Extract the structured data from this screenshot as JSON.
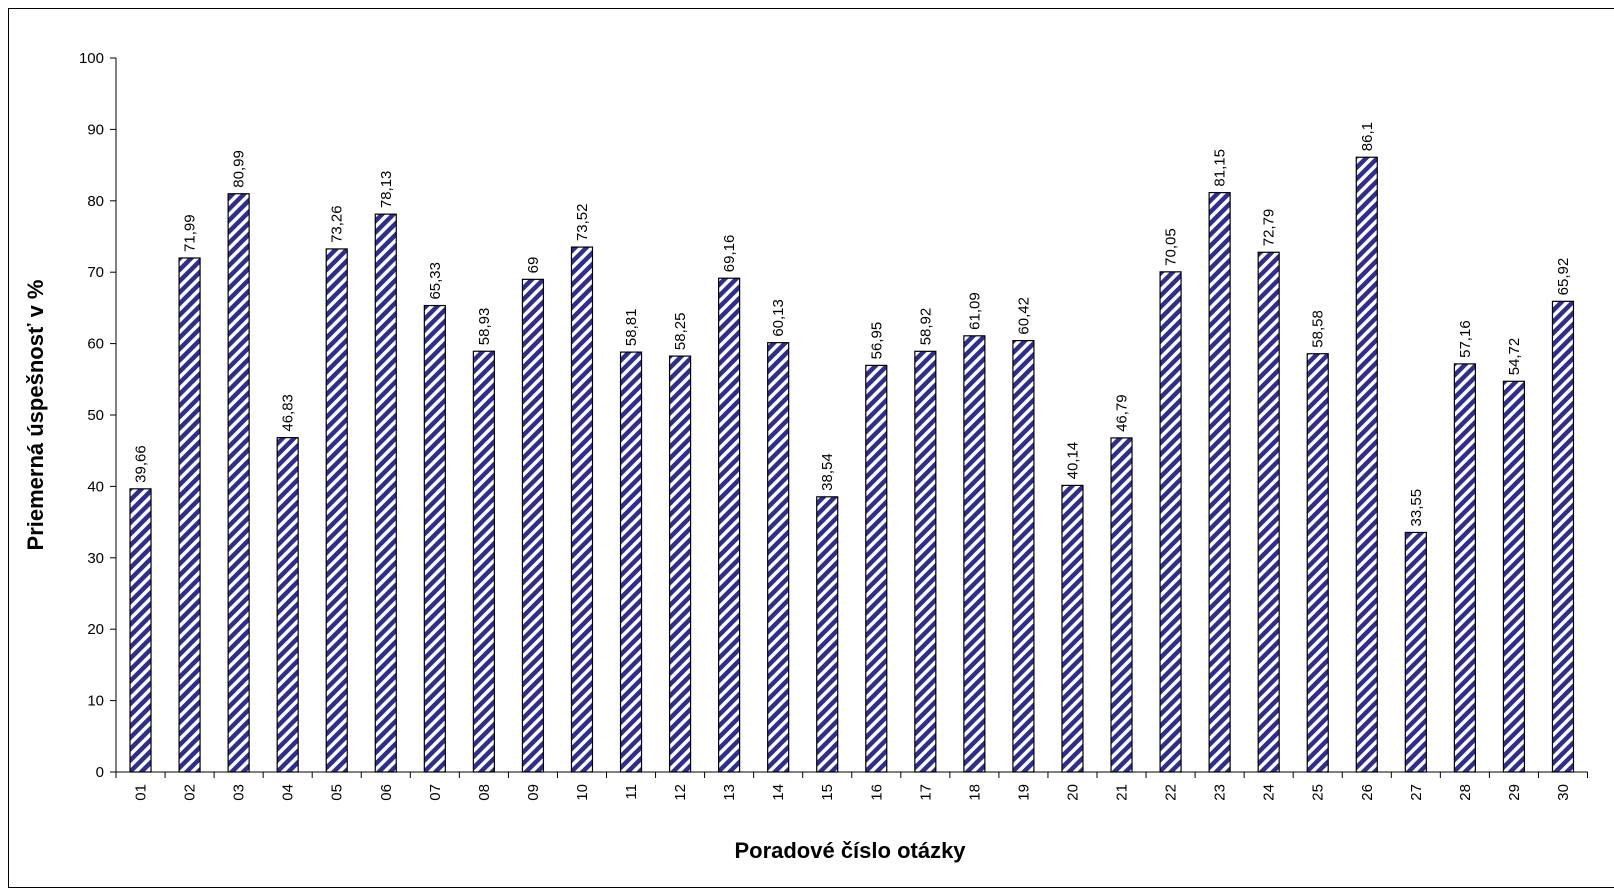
{
  "chart_data": {
    "type": "bar",
    "title": "",
    "xlabel": "Poradové číslo otázky",
    "ylabel": "Priemerná úspešnosť v %",
    "ylim": [
      0,
      100
    ],
    "yticks": [
      0,
      10,
      20,
      30,
      40,
      50,
      60,
      70,
      80,
      90,
      100
    ],
    "grid": false,
    "legend": "none",
    "bar_fill": "#2e2e8f",
    "bar_stripe": "#ffffff",
    "bar_pattern": "diagonal-stripes",
    "categories": [
      "01",
      "02",
      "03",
      "04",
      "05",
      "06",
      "07",
      "08",
      "09",
      "10",
      "11",
      "12",
      "13",
      "14",
      "15",
      "16",
      "17",
      "18",
      "19",
      "20",
      "21",
      "22",
      "23",
      "24",
      "25",
      "26",
      "27",
      "28",
      "29",
      "30"
    ],
    "values": [
      39.66,
      71.99,
      80.99,
      46.83,
      73.26,
      78.13,
      65.33,
      58.93,
      69,
      73.52,
      58.81,
      58.25,
      69.16,
      60.13,
      38.54,
      56.95,
      58.92,
      61.09,
      60.42,
      40.14,
      46.79,
      70.05,
      81.15,
      72.79,
      58.58,
      86.1,
      33.55,
      57.16,
      54.72,
      65.92
    ],
    "value_labels": [
      "39,66",
      "71,99",
      "80,99",
      "46,83",
      "73,26",
      "78,13",
      "65,33",
      "58,93",
      "69",
      "73,52",
      "58,81",
      "58,25",
      "69,16",
      "60,13",
      "38,54",
      "56,95",
      "58,92",
      "61,09",
      "60,42",
      "40,14",
      "46,79",
      "70,05",
      "81,15",
      "72,79",
      "58,58",
      "86,1",
      "33,55",
      "57,16",
      "54,72",
      "65,92"
    ]
  }
}
